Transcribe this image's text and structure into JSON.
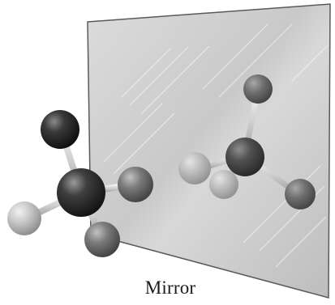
{
  "caption": "Mirror",
  "molecule_original": {
    "atoms": [
      "dark-atom",
      "central-carbon",
      "light-atom",
      "mid-gray-atom-right",
      "mid-gray-atom-bottom"
    ]
  },
  "molecule_reflection": {
    "atoms": [
      "mid-gray-atom-top",
      "central-carbon",
      "light-atom",
      "light-atom-lower",
      "mid-gray-atom-right"
    ]
  }
}
